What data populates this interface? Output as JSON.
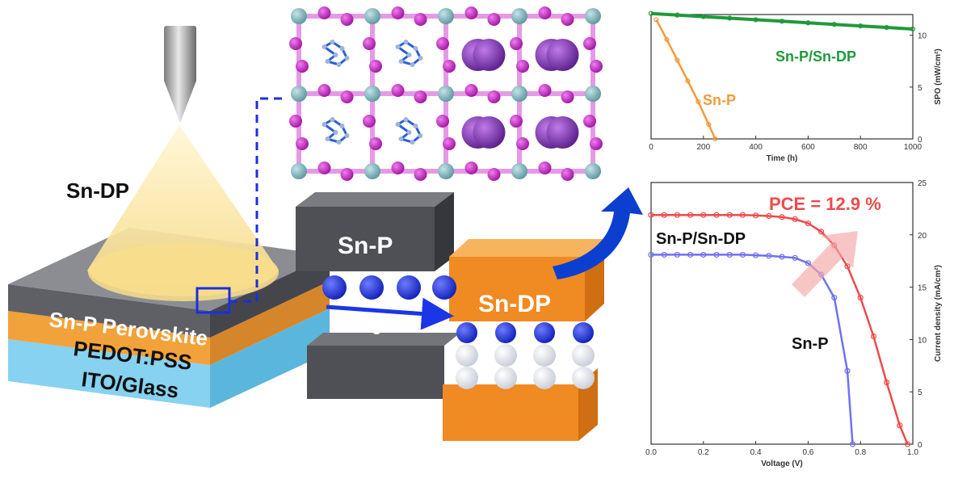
{
  "device": {
    "spray_label": "Sn-DP",
    "layer_perovskite": "Sn-P Perovskite",
    "layer_pedot": "PEDOT:PSS",
    "layer_ito": "ITO/Glass"
  },
  "interface": {
    "top_block_label": "Sn-P",
    "right_block_label": "Sn-DP",
    "electron_label": "e-"
  },
  "colors": {
    "sn_p_orange": "#f39a3a",
    "sn_dp_green": "#1f9a3a",
    "pce_red": "#ef4a4a",
    "sn_p_blue": "#6f72ee",
    "arrow_blue": "#0a3fcf",
    "octahedra_magenta": "#d53bd5",
    "tin_teal": "#7ab5bd",
    "large_cation_purple": "#8a3fb8"
  },
  "chart_data": [
    {
      "type": "line",
      "xlabel": "Time (h)",
      "ylabel": "SPO (mW/cm²)",
      "xlim": [
        0,
        1000
      ],
      "ylim": [
        0,
        12
      ],
      "xticks": [
        "0",
        "200",
        "400",
        "600",
        "800",
        "1000"
      ],
      "yticks": [
        "0",
        "5",
        "10"
      ],
      "grid": false,
      "series": [
        {
          "name": "Sn-P/Sn-DP",
          "color": "#1f9a3a",
          "x": [
            0,
            100,
            200,
            300,
            400,
            500,
            600,
            700,
            800,
            900,
            1000
          ],
          "y": [
            12.1,
            11.95,
            11.8,
            11.65,
            11.5,
            11.35,
            11.2,
            11.05,
            10.9,
            10.75,
            10.6
          ]
        },
        {
          "name": "Sn-P",
          "color": "#f39a3a",
          "x": [
            20,
            60,
            100,
            140,
            180,
            220,
            245
          ],
          "y": [
            11.5,
            9.6,
            7.6,
            5.6,
            3.6,
            1.4,
            0
          ]
        }
      ]
    },
    {
      "type": "line",
      "xlabel": "Voltage (V)",
      "ylabel": "Current density (mA/cm²)",
      "xlim": [
        0,
        1.0
      ],
      "ylim": [
        0,
        25
      ],
      "xticks": [
        "0.0",
        "0.2",
        "0.4",
        "0.6",
        "0.8",
        "1.0"
      ],
      "yticks": [
        "0",
        "5",
        "10",
        "15",
        "20",
        "25"
      ],
      "annotation": "PCE = 12.9 %",
      "grid": false,
      "series": [
        {
          "name": "Sn-P/Sn-DP",
          "color": "#ef4a4a",
          "x": [
            0,
            0.05,
            0.1,
            0.15,
            0.2,
            0.25,
            0.3,
            0.35,
            0.4,
            0.45,
            0.5,
            0.55,
            0.6,
            0.65,
            0.7,
            0.75,
            0.8,
            0.85,
            0.9,
            0.95,
            0.98
          ],
          "y": [
            21.9,
            21.9,
            21.9,
            21.9,
            21.9,
            21.9,
            21.9,
            21.9,
            21.85,
            21.8,
            21.7,
            21.5,
            21.1,
            20.3,
            19.0,
            17.0,
            14.0,
            10.3,
            5.9,
            1.8,
            0
          ]
        },
        {
          "name": "Sn-P",
          "color": "#6f72ee",
          "x": [
            0,
            0.05,
            0.1,
            0.15,
            0.2,
            0.25,
            0.3,
            0.35,
            0.4,
            0.45,
            0.5,
            0.55,
            0.6,
            0.65,
            0.7,
            0.75,
            0.77
          ],
          "y": [
            18.1,
            18.1,
            18.1,
            18.1,
            18.1,
            18.1,
            18.1,
            18.1,
            18.05,
            18.0,
            17.9,
            17.8,
            17.3,
            16.2,
            14.0,
            7.0,
            0
          ]
        }
      ]
    }
  ]
}
